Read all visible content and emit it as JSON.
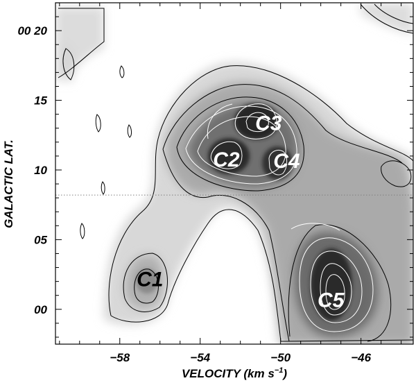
{
  "chart_data": {
    "type": "heatmap",
    "plot_kind": "position-velocity contour map (grayscale with contours)",
    "xlabel": "VELOCITY  (km s",
    "xlabel_sup": "−1",
    "xlabel_close": ")",
    "ylabel": "GALACTIC LAT.",
    "x_ticks": [
      {
        "value": -58,
        "label": "−58"
      },
      {
        "value": -54,
        "label": "−54"
      },
      {
        "value": -50,
        "label": "−50"
      },
      {
        "value": -46,
        "label": "−46"
      }
    ],
    "y_ticks": [
      {
        "value": 0,
        "label": "00"
      },
      {
        "value": 5,
        "label": "05"
      },
      {
        "value": 10,
        "label": "10"
      },
      {
        "value": 15,
        "label": "15"
      },
      {
        "value": 20,
        "label": "00 20"
      }
    ],
    "xlim": [
      -61.2,
      -43.4
    ],
    "ylim": [
      -2.5,
      22.0
    ],
    "reference_line_y": 8.2,
    "clumps": [
      {
        "label": "C1",
        "velocity": -56.5,
        "latitude": 2.2,
        "color": "#000000"
      },
      {
        "label": "C2",
        "velocity": -52.7,
        "latitude": 10.8,
        "color": "#ffffff"
      },
      {
        "label": "C3",
        "velocity": -50.6,
        "latitude": 13.4,
        "color": "#ffffff"
      },
      {
        "label": "C4",
        "velocity": -49.7,
        "latitude": 10.7,
        "color": "#ffffff"
      },
      {
        "label": "C5",
        "velocity": -47.5,
        "latitude": 0.7,
        "color": "#ffffff"
      }
    ],
    "grid": false
  }
}
